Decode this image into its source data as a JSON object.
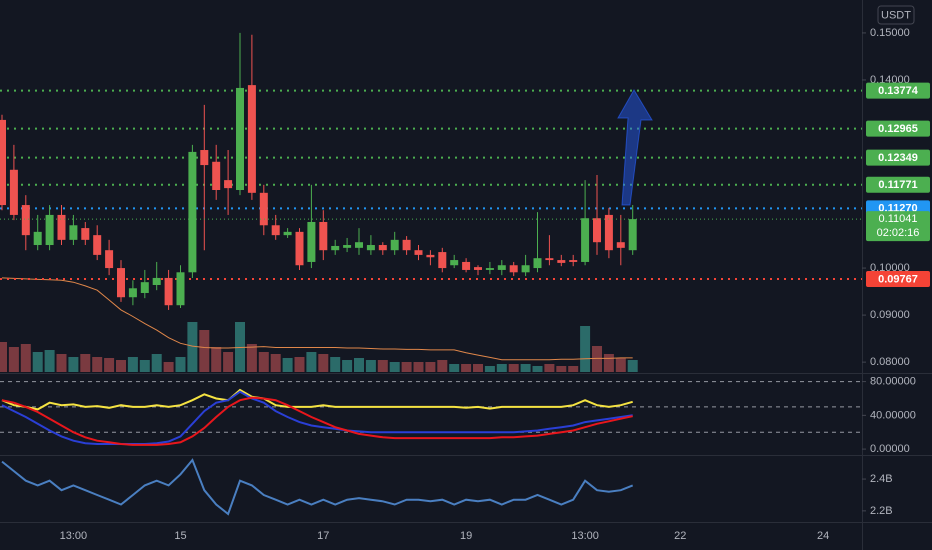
{
  "chart_data": [
    {
      "type": "candlestick",
      "currency": "USDT",
      "categories": [
        null,
        null,
        null,
        null,
        null,
        null,
        "13:00",
        null,
        null,
        null,
        null,
        null,
        null,
        null,
        null,
        "15",
        null,
        null,
        null,
        null,
        null,
        null,
        null,
        null,
        null,
        null,
        null,
        "17",
        null,
        null,
        null,
        null,
        null,
        null,
        null,
        null,
        null,
        null,
        null,
        "19",
        null,
        null,
        null,
        null,
        null,
        null,
        null,
        null,
        null,
        "13:00",
        null,
        null,
        null,
        null,
        null,
        null,
        null,
        "22",
        null,
        null,
        null,
        null,
        null,
        null,
        null,
        null,
        null,
        null,
        null,
        "24"
      ],
      "open": [
        0.1315,
        0.1209,
        0.1134,
        0.1049,
        0.1049,
        0.1113,
        0.106,
        0.1085,
        0.107,
        0.1038,
        0.1,
        0.0938,
        0.0947,
        0.0964,
        0.0979,
        0.0921,
        0.0991,
        0.1251,
        0.1226,
        0.1187,
        0.1166,
        0.1389,
        0.116,
        0.1091,
        0.107,
        0.1077,
        0.1013,
        0.1098,
        0.1038,
        0.1043,
        0.1043,
        0.1038,
        0.1049,
        0.1038,
        0.106,
        0.1038,
        0.1028,
        0.1034,
        0.1006,
        0.1013,
        0.1002,
        0.0996,
        0.0996,
        0.1006,
        0.0991,
        0.1,
        0.1021,
        0.1017,
        0.1017,
        0.1013,
        0.1106,
        0.1113,
        0.1055,
        0.1038,
        null,
        null,
        null,
        null,
        null,
        null,
        null,
        null,
        null,
        null,
        null,
        null,
        null,
        null,
        null,
        null
      ],
      "high": [
        0.1326,
        0.1262,
        0.1155,
        0.1113,
        0.1134,
        0.1134,
        0.1113,
        0.1098,
        0.1091,
        0.106,
        0.1017,
        0.0974,
        0.0996,
        0.1013,
        0.0996,
        0.1006,
        0.1262,
        0.1347,
        0.1262,
        0.1251,
        0.15,
        0.1496,
        0.1177,
        0.1113,
        0.1085,
        0.1085,
        0.1177,
        0.1123,
        0.106,
        0.1064,
        0.1085,
        0.107,
        0.1055,
        0.1077,
        0.1068,
        0.1049,
        0.1038,
        0.1043,
        0.1028,
        0.1021,
        0.1006,
        0.1013,
        0.1017,
        0.1013,
        0.1028,
        0.1119,
        0.107,
        0.1028,
        0.1028,
        0.1187,
        0.1198,
        0.1128,
        0.1113,
        0.1134,
        null,
        null,
        null,
        null,
        null,
        null,
        null,
        null,
        null,
        null,
        null,
        null,
        null,
        null,
        null,
        null
      ],
      "low": [
        0.1123,
        0.1102,
        0.1038,
        0.1038,
        0.1038,
        0.1049,
        0.1049,
        0.1049,
        0.1017,
        0.0985,
        0.0928,
        0.0921,
        0.0936,
        0.0953,
        0.0911,
        0.0915,
        0.0979,
        0.1038,
        0.1145,
        0.1113,
        0.1155,
        0.1145,
        0.107,
        0.106,
        0.1064,
        0.0996,
        0.1,
        0.1017,
        0.1028,
        0.1034,
        0.1028,
        0.1028,
        0.1028,
        0.1028,
        0.1028,
        0.1017,
        0.1006,
        0.0991,
        0.1,
        0.0991,
        0.0985,
        0.0987,
        0.0985,
        0.0983,
        0.0983,
        0.0991,
        0.1006,
        0.1004,
        0.1004,
        0.1006,
        0.1028,
        0.1021,
        0.1006,
        0.1028,
        null,
        null,
        null,
        null,
        null,
        null,
        null,
        null,
        null,
        null,
        null,
        null,
        null,
        null,
        null,
        null
      ],
      "close": [
        0.1134,
        0.1113,
        0.107,
        0.1077,
        0.1113,
        0.106,
        0.1091,
        0.106,
        0.1028,
        0.1,
        0.0938,
        0.0957,
        0.097,
        0.0979,
        0.0921,
        0.0991,
        0.1247,
        0.1219,
        0.1166,
        0.117,
        0.1383,
        0.116,
        0.1091,
        0.107,
        0.1077,
        0.1006,
        0.1098,
        0.1038,
        0.1047,
        0.1049,
        0.1055,
        0.1049,
        0.1038,
        0.106,
        0.1038,
        0.1028,
        0.1023,
        0.1,
        0.1017,
        0.0996,
        0.0996,
        0.1,
        0.1006,
        0.0991,
        0.1006,
        0.1021,
        0.1017,
        0.1011,
        0.1013,
        0.1106,
        0.1055,
        0.1038,
        0.1043,
        0.11041,
        null,
        null,
        null,
        null,
        null,
        null,
        null,
        null,
        null,
        null,
        null,
        null,
        null,
        null,
        null,
        null
      ],
      "volume": [
        30,
        25,
        28,
        20,
        22,
        18,
        15,
        18,
        15,
        14,
        12,
        15,
        12,
        18,
        10,
        15,
        50,
        42,
        25,
        20,
        50,
        28,
        20,
        18,
        14,
        15,
        20,
        18,
        15,
        12,
        14,
        12,
        12,
        10,
        10,
        10,
        10,
        12,
        8,
        8,
        8,
        6,
        8,
        8,
        8,
        6,
        8,
        6,
        6,
        46,
        26,
        18,
        14,
        12,
        null,
        null,
        null,
        null,
        null,
        null,
        null,
        null,
        null,
        null,
        null,
        null,
        null,
        null,
        null,
        null
      ],
      "ma": {
        "color": "#e0874a",
        "values": [
          0.0979,
          0.0978,
          0.0977,
          0.0976,
          0.0975,
          0.0974,
          0.097,
          0.0962,
          0.0953,
          0.0932,
          0.0911,
          0.0897,
          0.0882,
          0.0868,
          0.0852,
          0.084,
          0.0834,
          0.0831,
          0.083,
          0.083,
          0.0831,
          0.0832,
          0.0833,
          0.0831,
          0.0831,
          0.0831,
          0.0831,
          0.0831,
          0.0831,
          0.083,
          0.083,
          0.0829,
          0.0828,
          0.0828,
          0.0827,
          0.0827,
          0.0826,
          0.0826,
          0.0826,
          0.082,
          0.0815,
          0.081,
          0.0805,
          0.0805,
          0.0805,
          0.0805,
          0.0805,
          0.0806,
          0.0806,
          0.0807,
          0.0808,
          0.0808,
          0.0809,
          0.0809,
          null,
          null,
          null,
          null,
          null,
          null,
          null,
          null,
          null,
          null,
          null,
          null,
          null,
          null,
          null,
          null
        ]
      },
      "up_color": "#4caf50",
      "down_color": "#ef5350",
      "volume_colors": [
        "#2b6b69",
        "#7a3a40"
      ],
      "ylim": [
        0.0779,
        0.157
      ],
      "yticks": [
        {
          "value": 0.15,
          "label": "0.15000"
        },
        {
          "value": 0.14,
          "label": "0.14000"
        },
        {
          "value": 0.1,
          "label": "0.10000"
        },
        {
          "value": 0.09,
          "label": "0.09000"
        },
        {
          "value": 0.08,
          "label": "0.08000"
        }
      ],
      "levels": [
        {
          "value": 0.13774,
          "color": "#4caf50"
        },
        {
          "value": 0.12965,
          "color": "#4caf50"
        },
        {
          "value": 0.12349,
          "color": "#4caf50"
        },
        {
          "value": 0.11771,
          "color": "#4caf50"
        },
        {
          "value": 0.1127,
          "label": "0.11270",
          "color": "#2196f3"
        },
        {
          "value": 0.09767,
          "color": "#f44336"
        }
      ],
      "last_price": {
        "value": 0.11041,
        "countdown": "02:02:16",
        "color": "#4caf50"
      }
    },
    {
      "type": "line",
      "series": [
        {
          "color": "#f5e342",
          "values": [
            58,
            52,
            50,
            47,
            55,
            52,
            53,
            50,
            51,
            49,
            52,
            50,
            50,
            52,
            50,
            52,
            58,
            65,
            60,
            58,
            70,
            62,
            60,
            52,
            50,
            50,
            50,
            52,
            50,
            50,
            50,
            50,
            50,
            50,
            50,
            50,
            50,
            50,
            50,
            49,
            50,
            48,
            50,
            50,
            50,
            50,
            50,
            50,
            52,
            58,
            52,
            50,
            52,
            56,
            null,
            null,
            null,
            null,
            null,
            null,
            null,
            null,
            null,
            null,
            null,
            null,
            null,
            null,
            null,
            null
          ]
        },
        {
          "color": "#2a3fd6",
          "values": [
            52,
            45,
            38,
            30,
            22,
            15,
            10,
            7,
            6,
            6,
            6,
            6,
            6,
            7,
            9,
            15,
            30,
            45,
            55,
            58,
            68,
            60,
            55,
            45,
            38,
            32,
            28,
            26,
            24,
            22,
            21,
            20,
            20,
            20,
            20,
            20,
            20,
            20,
            20,
            20,
            20,
            20,
            20,
            20,
            21,
            22,
            24,
            26,
            28,
            32,
            34,
            36,
            38,
            40,
            null,
            null,
            null,
            null,
            null,
            null,
            null,
            null,
            null,
            null,
            null,
            null,
            null,
            null,
            null,
            null
          ]
        },
        {
          "color": "#e8161c",
          "values": [
            58,
            55,
            50,
            44,
            36,
            28,
            20,
            14,
            10,
            8,
            6,
            5,
            5,
            5,
            6,
            8,
            15,
            25,
            38,
            50,
            58,
            61,
            60,
            58,
            52,
            45,
            38,
            32,
            26,
            22,
            18,
            16,
            14,
            13,
            13,
            13,
            13,
            13,
            13,
            13,
            13,
            13,
            14,
            14,
            15,
            16,
            18,
            20,
            22,
            26,
            30,
            33,
            36,
            39,
            null,
            null,
            null,
            null,
            null,
            null,
            null,
            null,
            null,
            null,
            null,
            null,
            null,
            null,
            null,
            null
          ]
        }
      ],
      "hlines": [
        80,
        50,
        20
      ],
      "ylim": [
        -7,
        89
      ],
      "yticks": [
        {
          "value": 80,
          "label": "80.00000"
        },
        {
          "value": 40,
          "label": "40.00000"
        },
        {
          "value": 0,
          "label": "0.00000"
        }
      ]
    },
    {
      "type": "line",
      "series": [
        {
          "color": "#4a7fc1",
          "values": [
            2.51,
            2.45,
            2.39,
            2.36,
            2.39,
            2.33,
            2.36,
            2.33,
            2.3,
            2.27,
            2.24,
            2.3,
            2.36,
            2.39,
            2.36,
            2.43,
            2.52,
            2.33,
            2.24,
            2.18,
            2.39,
            2.36,
            2.3,
            2.27,
            2.24,
            2.27,
            2.24,
            2.27,
            2.24,
            2.27,
            2.28,
            2.27,
            2.26,
            2.24,
            2.27,
            2.27,
            2.26,
            2.27,
            2.24,
            2.27,
            2.26,
            2.27,
            2.24,
            2.27,
            2.27,
            2.3,
            2.27,
            2.24,
            2.27,
            2.39,
            2.33,
            2.32,
            2.33,
            2.36,
            null,
            null,
            null,
            null,
            null,
            null,
            null,
            null,
            null,
            null,
            null,
            null,
            null,
            null,
            null,
            null
          ]
        }
      ],
      "ylim": [
        2.13,
        2.545
      ],
      "yticks": [
        {
          "value": 2.4,
          "label": "2.4B"
        },
        {
          "value": 2.2,
          "label": "2.2B"
        }
      ]
    }
  ]
}
